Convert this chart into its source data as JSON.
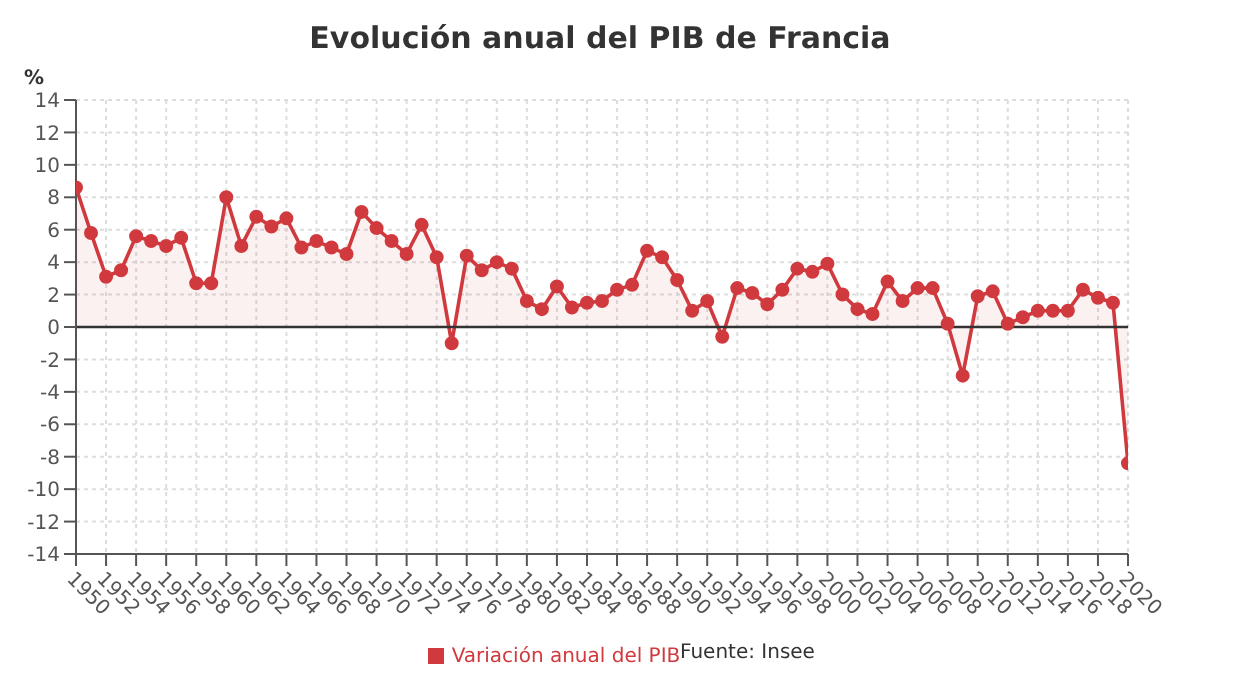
{
  "chart_data": {
    "type": "area",
    "title": "Evolución anual del PIB de Francia",
    "ylabel": "%",
    "x": [
      1950,
      1951,
      1952,
      1953,
      1954,
      1955,
      1956,
      1957,
      1958,
      1959,
      1960,
      1961,
      1962,
      1963,
      1964,
      1965,
      1966,
      1967,
      1968,
      1969,
      1970,
      1971,
      1972,
      1973,
      1974,
      1975,
      1976,
      1977,
      1978,
      1979,
      1980,
      1981,
      1982,
      1983,
      1984,
      1985,
      1986,
      1987,
      1988,
      1989,
      1990,
      1991,
      1992,
      1993,
      1994,
      1995,
      1996,
      1997,
      1998,
      1999,
      2000,
      2001,
      2002,
      2003,
      2004,
      2005,
      2006,
      2007,
      2008,
      2009,
      2010,
      2011,
      2012,
      2013,
      2014,
      2015,
      2016,
      2017,
      2018,
      2019,
      2020
    ],
    "series": [
      {
        "name": "Variación anual del PIB",
        "color": "#d03a3e",
        "values": [
          8.6,
          5.8,
          3.1,
          3.5,
          5.6,
          5.3,
          5.0,
          5.5,
          2.7,
          2.7,
          8.0,
          5.0,
          6.8,
          6.2,
          6.7,
          4.9,
          5.3,
          4.9,
          4.5,
          7.1,
          6.1,
          5.3,
          4.5,
          6.3,
          4.3,
          -1.0,
          4.4,
          3.5,
          4.0,
          3.6,
          1.6,
          1.1,
          2.5,
          1.2,
          1.5,
          1.6,
          2.3,
          2.6,
          4.7,
          4.3,
          2.9,
          1.0,
          1.6,
          -0.6,
          2.4,
          2.1,
          1.4,
          2.3,
          3.6,
          3.4,
          3.9,
          2.0,
          1.1,
          0.8,
          2.8,
          1.6,
          2.4,
          2.4,
          0.2,
          -3.0,
          1.9,
          2.2,
          0.2,
          0.6,
          1.0,
          1.0,
          1.0,
          2.3,
          1.8,
          1.5,
          -8.4
        ]
      }
    ],
    "xlim": [
      1950,
      2020
    ],
    "xticks": [
      1950,
      1952,
      1954,
      1956,
      1958,
      1960,
      1962,
      1964,
      1966,
      1968,
      1970,
      1972,
      1974,
      1976,
      1978,
      1980,
      1982,
      1984,
      1986,
      1988,
      1990,
      1992,
      1994,
      1996,
      1998,
      2000,
      2002,
      2004,
      2006,
      2008,
      2010,
      2012,
      2014,
      2016,
      2018,
      2020
    ],
    "ylim": [
      -14,
      14
    ],
    "yticks": [
      -14,
      -12,
      -10,
      -8,
      -6,
      -4,
      -2,
      0,
      2,
      4,
      6,
      8,
      10,
      12,
      14
    ],
    "ref_lines": [
      {
        "axis": "y",
        "value": 0,
        "color": "#333333"
      }
    ],
    "grid": true,
    "legend": "bottom",
    "marker": "circle",
    "line_style": "solid",
    "annotations": [
      "Fuente: Insee"
    ]
  }
}
